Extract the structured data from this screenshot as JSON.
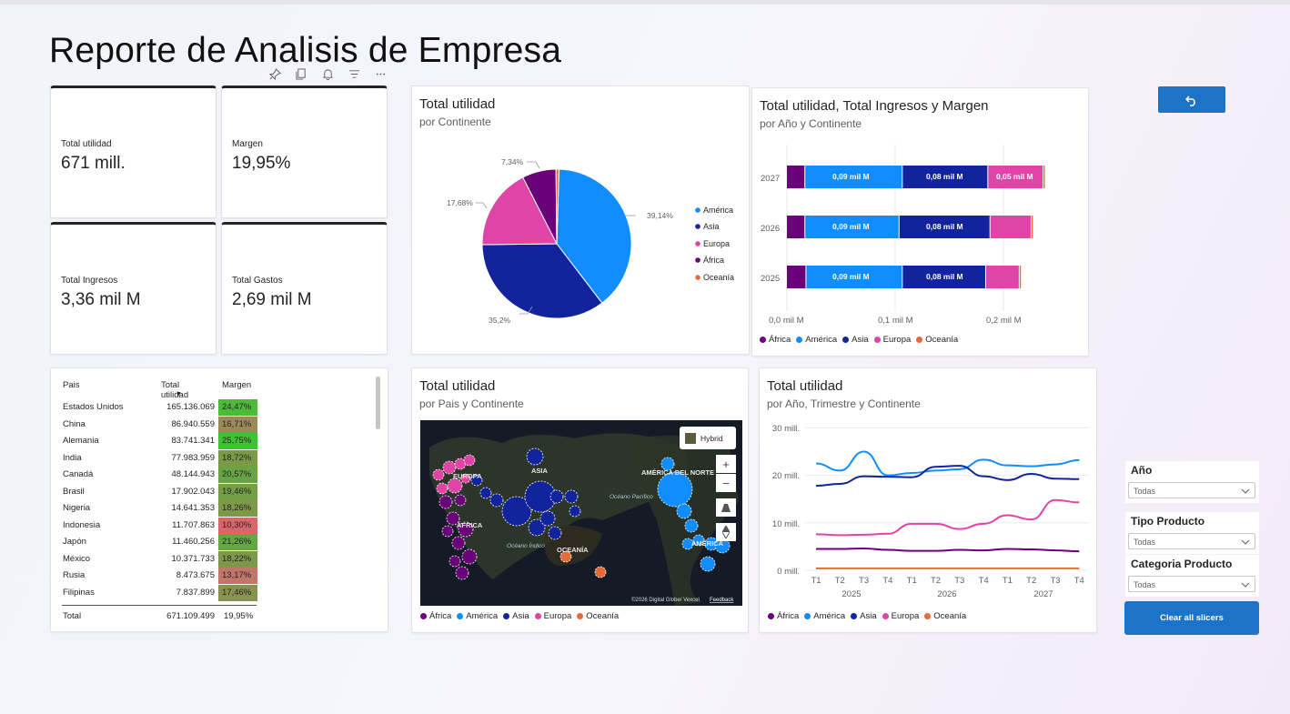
{
  "page_title": "Reporte de Analisis de Empresa",
  "toolbar": [
    "pin-icon",
    "copy-icon",
    "bell-icon",
    "filter-icon",
    "more-icon"
  ],
  "colors": {
    "africa": "#6b007b",
    "america": "#118dff",
    "asia": "#12239e",
    "europa": "#e044a7",
    "oceania": "#e66c37",
    "accent": "#1c74c8"
  },
  "kpis": [
    {
      "label": "Total utilidad",
      "value": "671 mill."
    },
    {
      "label": "Margen",
      "value": "19,95%"
    },
    {
      "label": "Total Ingresos",
      "value": "3,36 mil M"
    },
    {
      "label": "Total Gastos",
      "value": "2,69 mil M"
    }
  ],
  "legend": [
    "África",
    "América",
    "Asia",
    "Europa",
    "Oceanía"
  ],
  "pie_visual": {
    "title": "Total utilidad",
    "subtitle": "por Continente",
    "legend": [
      "América",
      "Asia",
      "Europa",
      "África",
      "Oceanía"
    ],
    "labels": [
      "39,14%",
      "35,2%",
      "17,68%",
      "7,34%"
    ]
  },
  "bar_visual": {
    "title": "Total utilidad, Total Ingresos y Margen",
    "subtitle": "por Año y Continente",
    "years": [
      "2027",
      "2026",
      "2025"
    ],
    "bar_labels": [
      "0,09 mil M",
      "0,08 mil M",
      "0,05 mil M"
    ],
    "xticks": [
      "0,0 mil M",
      "0,1 mil M",
      "0,2 mil M"
    ]
  },
  "table": {
    "headers": [
      "Pais",
      "Total utilidad",
      "Margen"
    ],
    "rows": [
      {
        "pais": "Estados Unidos",
        "utilidad": "165.136.069",
        "margen": "24,47%",
        "bg": "#4cbb3a"
      },
      {
        "pais": "China",
        "utilidad": "86.940.559",
        "margen": "16,71%",
        "bg": "#9a8a55"
      },
      {
        "pais": "Alemania",
        "utilidad": "83.741.341",
        "margen": "25,75%",
        "bg": "#3ec332"
      },
      {
        "pais": "India",
        "utilidad": "77.983.959",
        "margen": "18,72%",
        "bg": "#7a9a48"
      },
      {
        "pais": "Canadá",
        "utilidad": "48.144.943",
        "margen": "20,57%",
        "bg": "#69a444"
      },
      {
        "pais": "Brasil",
        "utilidad": "17.902.043",
        "margen": "19,46%",
        "bg": "#739f46"
      },
      {
        "pais": "Nigeria",
        "utilidad": "14.641.353",
        "margen": "18,26%",
        "bg": "#7e984a"
      },
      {
        "pais": "Indonesia",
        "utilidad": "11.707.863",
        "margen": "10,30%",
        "bg": "#d9676a"
      },
      {
        "pais": "Japón",
        "utilidad": "11.460.256",
        "margen": "21,26%",
        "bg": "#63a642"
      },
      {
        "pais": "México",
        "utilidad": "10.371.733",
        "margen": "18,22%",
        "bg": "#7e984a"
      },
      {
        "pais": "Rusia",
        "utilidad": "8.473.675",
        "margen": "13,17%",
        "bg": "#c2766a"
      },
      {
        "pais": "Filipinas",
        "utilidad": "7.837.899",
        "margen": "17,46%",
        "bg": "#889350"
      }
    ],
    "total": {
      "pais": "Total",
      "utilidad": "671.109.499",
      "margen": "19,95%"
    }
  },
  "map_visual": {
    "title": "Total utilidad",
    "subtitle": "por Pais y Continente",
    "map_style_label": "Hybrid",
    "region_labels": [
      "EUROPA",
      "ASIA",
      "ÁFRICA",
      "AMÉRICA DEL NORTE",
      "Océano Pacífico",
      "Océano Índico",
      "OCEANÍA",
      "AMÉRICA"
    ],
    "attribution": "©2026 Digital Globe/ Vexcel",
    "feedback": "Feedback"
  },
  "line_visual": {
    "title": "Total utilidad",
    "subtitle": "por Año, Trimestre y Continente",
    "yticks": [
      "30 mill.",
      "20 mill.",
      "10 mill.",
      "0 mill."
    ],
    "quarters": [
      "T1",
      "T2",
      "T3",
      "T4",
      "T1",
      "T2",
      "T3",
      "T4",
      "T1",
      "T2",
      "T3",
      "T4"
    ],
    "years": [
      "2025",
      "2026",
      "2027"
    ]
  },
  "slicers": [
    {
      "label": "Año",
      "value": "Todas"
    },
    {
      "label": "Tipo Producto",
      "value": "Todas"
    },
    {
      "label": "Categoria Producto",
      "value": "Todas"
    }
  ],
  "clear_button": "Clear all slicers",
  "chart_data": [
    {
      "type": "pie",
      "title": "Total utilidad",
      "subtitle": "por Continente",
      "categories": [
        "América",
        "Asia",
        "Europa",
        "África",
        "Oceanía"
      ],
      "values": [
        39.14,
        35.2,
        17.68,
        7.34,
        0.64
      ],
      "legend": "right"
    },
    {
      "type": "bar",
      "title": "Total utilidad, Total Ingresos y Margen",
      "subtitle": "por Año y Continente",
      "orientation": "horizontal-stacked",
      "categories": [
        "2027",
        "2026",
        "2025"
      ],
      "series": [
        {
          "name": "África",
          "values": [
            0.017,
            0.017,
            0.018
          ]
        },
        {
          "name": "América",
          "values": [
            0.09,
            0.087,
            0.089
          ]
        },
        {
          "name": "Asia",
          "values": [
            0.079,
            0.084,
            0.077
          ]
        },
        {
          "name": "Europa",
          "values": [
            0.051,
            0.038,
            0.031
          ]
        },
        {
          "name": "Oceanía",
          "values": [
            0.002,
            0.002,
            0.002
          ]
        }
      ],
      "xlim": [
        0,
        0.25
      ],
      "legend": "bottom-left"
    },
    {
      "type": "scatter",
      "title": "Total utilidad",
      "subtitle": "por Pais y Continente",
      "categories": [
        "África",
        "América",
        "Asia",
        "Europa",
        "Oceanía"
      ],
      "legend": "bottom-left"
    },
    {
      "type": "line",
      "title": "Total utilidad",
      "subtitle": "por Año, Trimestre y Continente",
      "x": [
        "2025 T1",
        "2025 T2",
        "2025 T3",
        "2025 T4",
        "2026 T1",
        "2026 T2",
        "2026 T3",
        "2026 T4",
        "2027 T1",
        "2027 T2",
        "2027 T3",
        "2027 T4"
      ],
      "series": [
        {
          "name": "África",
          "values": [
            4.5,
            4.5,
            4.6,
            4.3,
            4.1,
            4.1,
            4.3,
            4.2,
            4.5,
            4.4,
            4.2,
            4.0
          ]
        },
        {
          "name": "América",
          "values": [
            22.5,
            21.0,
            25.0,
            20.0,
            20.5,
            21.0,
            21.3,
            23.3,
            22.1,
            21.9,
            22.3,
            23.2
          ]
        },
        {
          "name": "Asia",
          "values": [
            17.8,
            18.2,
            19.8,
            19.7,
            19.6,
            21.8,
            22.0,
            19.8,
            19.0,
            20.3,
            19.3,
            19.2
          ]
        },
        {
          "name": "Europa",
          "values": [
            7.6,
            7.4,
            7.5,
            7.7,
            9.8,
            9.8,
            8.7,
            9.8,
            11.6,
            10.7,
            14.8,
            14.3
          ]
        },
        {
          "name": "Oceanía",
          "values": [
            0.4,
            0.4,
            0.4,
            0.4,
            0.4,
            0.4,
            0.4,
            0.4,
            0.4,
            0.4,
            0.4,
            0.4
          ]
        }
      ],
      "ylim": [
        0,
        30
      ],
      "grid": true,
      "legend": "bottom-left"
    }
  ]
}
